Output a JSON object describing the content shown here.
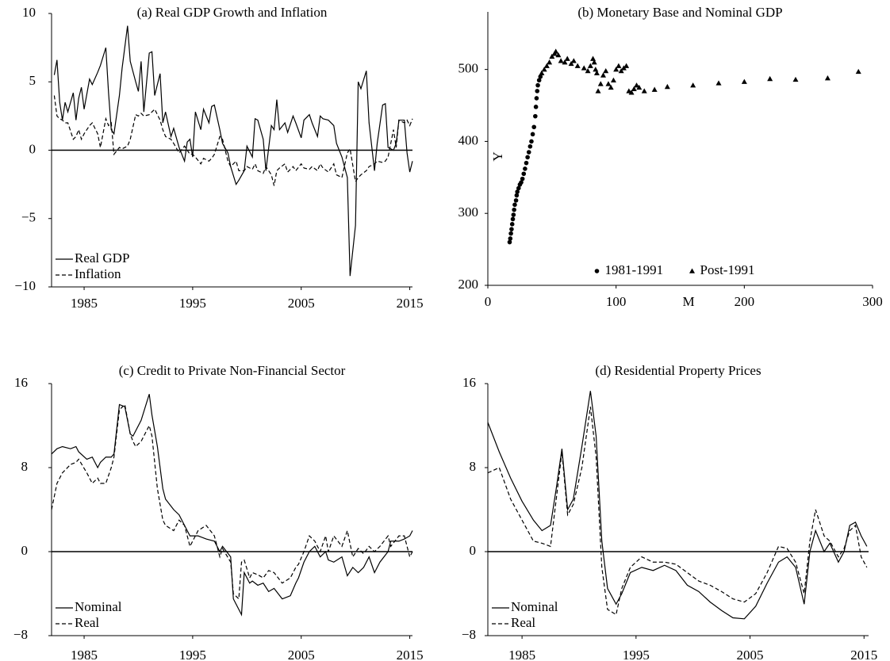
{
  "chart_data": [
    {
      "type": "line",
      "title": "(a) Real GDP Growth and Inflation",
      "x": [
        1982.25,
        1982.5,
        1982.75,
        1983,
        1983.25,
        1983.5,
        1984,
        1984.25,
        1984.5,
        1984.75,
        1985,
        1985.5,
        1985.75,
        1986.25,
        1986.5,
        1987,
        1987.25,
        1987.5,
        1987.75,
        1988.25,
        1988.5,
        1989,
        1989.25,
        1989.75,
        1990,
        1990.25,
        1990.5,
        1991,
        1991.25,
        1991.5,
        1992,
        1992.25,
        1992.5,
        1993,
        1993.25,
        1993.75,
        1994.25,
        1994.5,
        1994.75,
        1995,
        1995.25,
        1995.75,
        1996,
        1996.5,
        1996.75,
        1997,
        1997.5,
        1997.75,
        1998.25,
        1998.5,
        1999,
        1999.25,
        1999.75,
        2000,
        2000.5,
        2000.75,
        2001,
        2001.5,
        2001.75,
        2002.25,
        2002.5,
        2002.75,
        2003,
        2003.5,
        2003.75,
        2004.25,
        2004.5,
        2005,
        2005.25,
        2005.75,
        2006,
        2006.5,
        2006.75,
        2007,
        2007.5,
        2008,
        2008.25,
        2008.75,
        2009.25,
        2009.5,
        2010,
        2010.25,
        2010.5,
        2011,
        2011.25,
        2011.75,
        2012,
        2012.5,
        2012.75,
        2013,
        2013.5,
        2013.75,
        2014,
        2014.5,
        2014.75,
        2015,
        2015.25
      ],
      "xlim": [
        1982,
        2015.25
      ],
      "xticks": [
        1985,
        1995,
        2005,
        2015
      ],
      "ylim": [
        -10,
        10
      ],
      "yticks": [
        10,
        5,
        0,
        {
          "value": -5,
          "label": "−5"
        },
        {
          "value": -10,
          "label": "−10"
        }
      ],
      "zero_line": true,
      "legend": "lower left",
      "series": [
        {
          "name": "Real GDP",
          "color": "#000000",
          "dash": false,
          "values": [
            5.5,
            6.6,
            3.5,
            2.2,
            3.5,
            2.8,
            4.2,
            2.2,
            3.8,
            4.6,
            3.0,
            5.2,
            4.8,
            5.7,
            6.2,
            7.5,
            4.2,
            1.5,
            1.2,
            4.0,
            6.0,
            9.1,
            6.5,
            5.0,
            4.3,
            6.5,
            2.8,
            7.1,
            7.2,
            4.0,
            5.6,
            2.0,
            2.8,
            1.0,
            1.6,
            0.2,
            -0.8,
            0.6,
            0.8,
            -0.5,
            2.8,
            1.5,
            3.0,
            2.0,
            3.2,
            3.3,
            1.5,
            0.5,
            -0.2,
            -1.2,
            -2.5,
            -2.2,
            -1.5,
            0.3,
            -0.5,
            2.3,
            2.2,
            0.8,
            -1.5,
            1.8,
            1.5,
            3.7,
            1.5,
            2.0,
            1.3,
            2.5,
            2.0,
            0.9,
            2.2,
            2.6,
            2.0,
            1.0,
            2.5,
            2.3,
            2.2,
            1.8,
            0.5,
            -0.5,
            -2.0,
            -9.2,
            -5.5,
            5.0,
            4.5,
            5.8,
            2.0,
            -1.5,
            0.5,
            3.3,
            3.4,
            0.2,
            0.0,
            0.5,
            2.2,
            2.2,
            -0.2,
            -1.6,
            -0.8
          ]
        },
        {
          "name": "Inflation",
          "color": "#000000",
          "dash": true,
          "values": [
            4.0,
            2.5,
            2.3,
            2.2,
            2.0,
            2.0,
            0.8,
            1.0,
            1.5,
            0.8,
            1.2,
            1.8,
            2.0,
            1.2,
            0.2,
            2.3,
            1.8,
            2.0,
            -0.3,
            0.2,
            0.1,
            0.3,
            0.8,
            2.6,
            2.5,
            2.7,
            2.5,
            2.6,
            2.8,
            3.0,
            2.2,
            1.5,
            1.0,
            0.8,
            0.5,
            -0.2,
            0.3,
            0.0,
            -0.3,
            -0.3,
            -0.5,
            -1.0,
            -0.6,
            -0.8,
            -0.6,
            -0.3,
            1.0,
            0.8,
            -0.8,
            -1.2,
            -0.8,
            -1.5,
            -1.5,
            -1.2,
            -1.4,
            -1.0,
            -1.5,
            -1.7,
            -1.2,
            -1.8,
            -2.6,
            -1.5,
            -1.3,
            -1.0,
            -1.6,
            -1.2,
            -1.5,
            -1.0,
            -1.3,
            -1.4,
            -1.2,
            -1.5,
            -1.0,
            -1.3,
            -1.6,
            -1.0,
            -1.8,
            -2.0,
            -0.2,
            0.1,
            -2.3,
            -2.0,
            -1.8,
            -1.5,
            -1.2,
            -1.0,
            -0.8,
            -0.9,
            -0.8,
            -0.5,
            1.5,
            0.2,
            2.2,
            2.0,
            2.2,
            1.8,
            2.3
          ]
        }
      ]
    },
    {
      "type": "scatter",
      "title": "(b) Monetary Base and Nominal GDP",
      "x_label": "M",
      "y_label": "Y",
      "xlim": [
        0,
        300
      ],
      "xticks": [
        0,
        100,
        200,
        300
      ],
      "ylim": [
        200,
        580
      ],
      "yticks": [
        200,
        300,
        400,
        500
      ],
      "legend": "lower center",
      "series": [
        {
          "name": "1981-1991",
          "color": "#000000",
          "marker": "circle",
          "x": [
            17,
            17.5,
            18,
            18.5,
            19,
            19.5,
            20,
            20.5,
            21,
            22,
            22.5,
            23,
            24,
            25,
            26,
            27,
            28,
            29,
            30,
            31,
            32,
            33,
            34,
            35,
            36,
            37,
            37.5,
            38,
            38.5,
            39,
            40,
            41
          ],
          "values": [
            260,
            265,
            272,
            278,
            285,
            292,
            298,
            305,
            312,
            318,
            325,
            330,
            335,
            340,
            343,
            348,
            355,
            362,
            370,
            378,
            385,
            393,
            400,
            410,
            420,
            435,
            448,
            460,
            470,
            478,
            485,
            490
          ]
        },
        {
          "name": "Post-1991",
          "color": "#000000",
          "marker": "triangle",
          "x": [
            42,
            44,
            46,
            48,
            50,
            52,
            53,
            55,
            57,
            60,
            62,
            65,
            67,
            70,
            75,
            78,
            80,
            82,
            83,
            84,
            85,
            86,
            88,
            90,
            92,
            94,
            96,
            98,
            100,
            102,
            104,
            106,
            108,
            110,
            112,
            114,
            116,
            118,
            122,
            130,
            140,
            160,
            180,
            200,
            220,
            240,
            265,
            289
          ],
          "values": [
            495,
            500,
            505,
            510,
            518,
            522,
            525,
            520,
            512,
            510,
            515,
            508,
            512,
            505,
            502,
            498,
            505,
            515,
            510,
            500,
            495,
            470,
            480,
            492,
            498,
            480,
            475,
            485,
            500,
            505,
            498,
            502,
            505,
            470,
            468,
            473,
            478,
            475,
            470,
            472,
            476,
            478,
            481,
            483,
            487,
            486,
            488,
            497
          ]
        }
      ]
    },
    {
      "type": "line",
      "title": "(c) Credit to Private Non-Financial Sector",
      "x": [
        1982,
        1982.5,
        1983,
        1983.75,
        1984.25,
        1984.5,
        1985.25,
        1985.75,
        1986.25,
        1986.5,
        1987,
        1987.5,
        1987.75,
        1988.25,
        1988.75,
        1989.25,
        1989.5,
        1989.75,
        1990.25,
        1991,
        1991.25,
        1991.75,
        1992.25,
        1992.5,
        1993.25,
        1993.75,
        1994.25,
        1994.75,
        1995.5,
        1996.25,
        1997,
        1997.5,
        1997.75,
        1998.5,
        1998.75,
        1999.25,
        1999.5,
        1999.75,
        2000.25,
        2000.5,
        2001,
        2001.5,
        2002,
        2002.5,
        2003.25,
        2004,
        2004.5,
        2004.75,
        2005.25,
        2005.75,
        2006.25,
        2006.75,
        2007.25,
        2007.5,
        2008,
        2008.75,
        2009.25,
        2009.75,
        2010.25,
        2010.75,
        2011.25,
        2011.75,
        2012.25,
        2013,
        2013.25,
        2014,
        2014.5,
        2015,
        2015.25
      ],
      "xlim": [
        1982,
        2015.25
      ],
      "xticks": [
        1985,
        1995,
        2005,
        2015
      ],
      "ylim": [
        -8,
        16
      ],
      "yticks": [
        16,
        8,
        0,
        {
          "value": -8,
          "label": "−8"
        }
      ],
      "zero_line": true,
      "legend": "lower left",
      "series": [
        {
          "name": "Nominal",
          "color": "#000000",
          "dash": false,
          "values": [
            9.3,
            9.8,
            10.0,
            9.8,
            10.0,
            9.5,
            8.8,
            9.0,
            8.0,
            8.5,
            9.0,
            9.0,
            9.3,
            14.0,
            13.8,
            11.2,
            11.0,
            11.5,
            12.5,
            15.0,
            13.0,
            10.0,
            6.0,
            5.0,
            4.0,
            3.5,
            2.5,
            1.5,
            1.5,
            1.2,
            1.0,
            0.0,
            0.5,
            -0.5,
            -4.5,
            -5.5,
            -6.0,
            -2.0,
            -3.0,
            -2.8,
            -3.2,
            -3.0,
            -3.8,
            -3.5,
            -4.5,
            -4.2,
            -3.0,
            -2.5,
            -1.0,
            0.0,
            0.5,
            -0.5,
            0.0,
            -0.8,
            -1.0,
            -0.5,
            -2.3,
            -1.5,
            -2.0,
            -1.5,
            -0.5,
            -2.0,
            -1.0,
            0.0,
            1.0,
            1.0,
            1.2,
            1.5,
            2.0
          ]
        },
        {
          "name": "Real",
          "color": "#000000",
          "dash": true,
          "values": [
            4.0,
            6.5,
            7.5,
            8.3,
            8.5,
            8.8,
            7.5,
            6.5,
            7.0,
            6.5,
            6.5,
            8.0,
            9.0,
            13.5,
            14.0,
            11.2,
            10.5,
            10.0,
            10.5,
            12.0,
            11.0,
            6.0,
            3.0,
            2.5,
            2.0,
            3.0,
            2.5,
            0.5,
            2.0,
            2.5,
            1.5,
            -0.5,
            0.3,
            -1.0,
            -4.0,
            -4.5,
            -1.0,
            -0.8,
            -2.5,
            -2.0,
            -2.2,
            -2.5,
            -1.8,
            -2.0,
            -3.0,
            -2.5,
            -1.5,
            -1.2,
            0.0,
            1.5,
            1.0,
            0.0,
            1.5,
            0.0,
            1.5,
            0.5,
            2.0,
            -0.5,
            0.3,
            -0.2,
            0.5,
            0.0,
            0.5,
            1.5,
            0.5,
            1.5,
            1.5,
            -0.5,
            0.0
          ]
        }
      ]
    },
    {
      "type": "line",
      "title": "(d) Residential Property Prices",
      "x": [
        1982,
        1983,
        1984,
        1985,
        1986,
        1986.75,
        1987.5,
        1988,
        1988.5,
        1989,
        1989.5,
        1990.25,
        1991,
        1991.5,
        1992,
        1992.5,
        1993.25,
        1993.75,
        1994.5,
        1995.5,
        1996.5,
        1997.5,
        1998.5,
        1999.5,
        2000.5,
        2001.5,
        2002.5,
        2003.5,
        2004.5,
        2005.5,
        2006.5,
        2007.5,
        2008.25,
        2009,
        2009.75,
        2010.25,
        2010.75,
        2011.5,
        2012,
        2012.75,
        2013.25,
        2013.75,
        2014.25,
        2014.75,
        2015.25
      ],
      "xlim": [
        1982,
        2015.4
      ],
      "xticks": [
        1985,
        1995,
        2005,
        2015
      ],
      "ylim": [
        -8,
        16
      ],
      "yticks": [
        16,
        8,
        0,
        {
          "value": -8,
          "label": "−8"
        }
      ],
      "zero_line": true,
      "legend": "lower left",
      "series": [
        {
          "name": "Nominal",
          "color": "#000000",
          "dash": false,
          "values": [
            12.3,
            9.5,
            7.0,
            4.8,
            3.0,
            2.0,
            2.5,
            6.0,
            9.8,
            4.0,
            5.0,
            10.0,
            15.3,
            11.0,
            1.0,
            -3.5,
            -5.0,
            -4.0,
            -2.0,
            -1.5,
            -1.8,
            -1.3,
            -1.8,
            -3.2,
            -3.8,
            -4.8,
            -5.6,
            -6.3,
            -6.4,
            -5.2,
            -3.0,
            -1.0,
            -0.5,
            -1.5,
            -5.0,
            0.0,
            2.0,
            0.0,
            0.8,
            -1.0,
            0.0,
            2.5,
            2.8,
            1.5,
            0.5
          ]
        },
        {
          "name": "Real",
          "color": "#000000",
          "dash": true,
          "values": [
            7.5,
            8.0,
            5.0,
            3.0,
            1.0,
            0.8,
            0.5,
            5.0,
            9.5,
            3.5,
            4.5,
            8.0,
            13.8,
            9.0,
            -1.5,
            -5.5,
            -6.0,
            -3.5,
            -1.5,
            -0.5,
            -1.0,
            -1.0,
            -1.2,
            -2.0,
            -2.8,
            -3.2,
            -3.8,
            -4.5,
            -4.8,
            -4.0,
            -2.0,
            0.5,
            0.3,
            -1.0,
            -4.0,
            1.0,
            4.0,
            1.5,
            1.0,
            -0.5,
            0.3,
            2.0,
            2.5,
            -0.5,
            -1.5
          ]
        }
      ]
    }
  ]
}
